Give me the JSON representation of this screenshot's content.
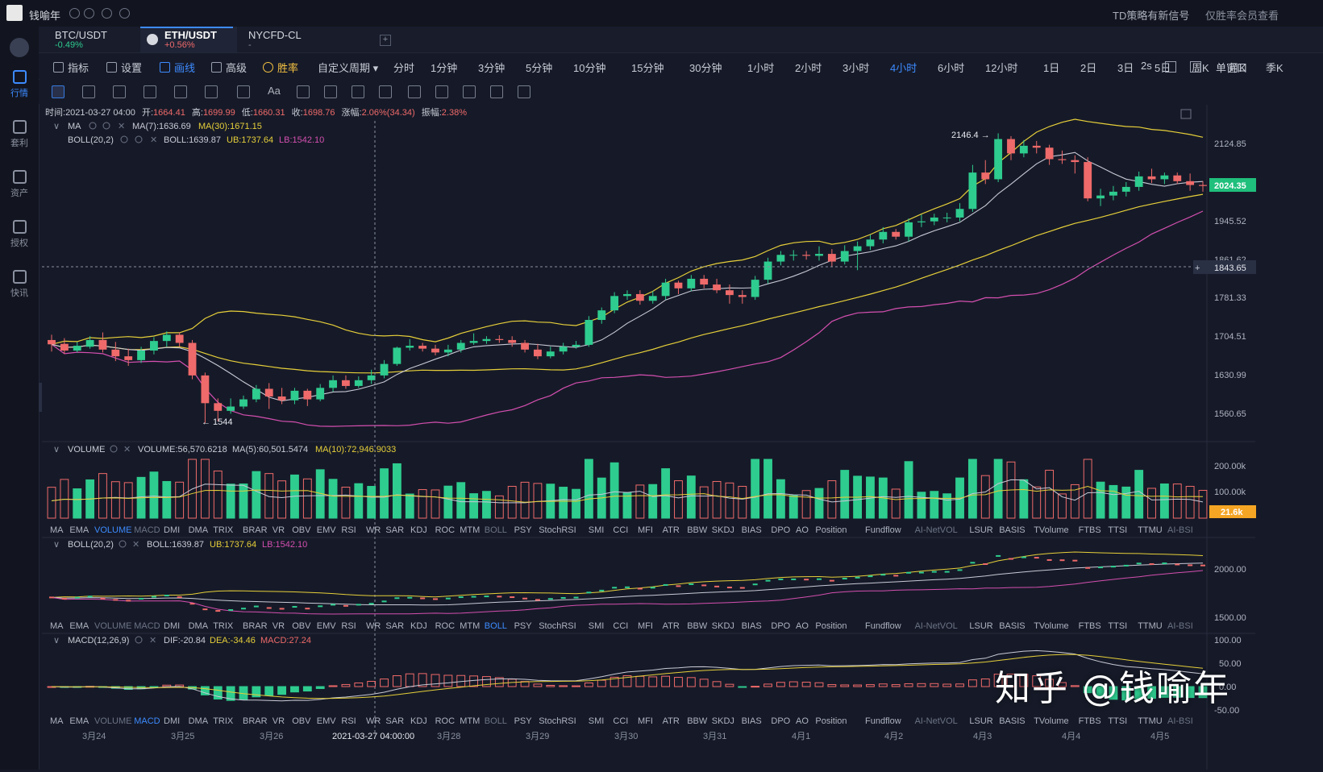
{
  "user": {
    "name": "钱喻年"
  },
  "top_notices": {
    "signal": "TD策略有新信号",
    "member": "仅胜率会员查看"
  },
  "sidebar": [
    {
      "label": "行情",
      "icon": "chart-icon",
      "active": true
    },
    {
      "label": "套利",
      "icon": "arbitrage-icon",
      "active": false
    },
    {
      "label": "资产",
      "icon": "wallet-icon",
      "active": false
    },
    {
      "label": "授权",
      "icon": "key-icon",
      "active": false
    },
    {
      "label": "快讯",
      "icon": "news-icon",
      "active": false
    }
  ],
  "tabs": [
    {
      "symbol": "BTC/USDT",
      "change": "-0.49%",
      "dir": "down"
    },
    {
      "symbol": "ETH/USDT",
      "change": "+0.56%",
      "dir": "up",
      "active": true
    },
    {
      "symbol": "NYCFD-CL",
      "change": "-",
      "dir": "flat"
    }
  ],
  "toolbar": {
    "indicator": "指标",
    "settings": "设置",
    "draw": "画线",
    "advanced": "高级",
    "winrate": "胜率",
    "custom": "自定义周期",
    "periods": [
      "分时",
      "1分钟",
      "3分钟",
      "5分钟",
      "10分钟",
      "15分钟",
      "30分钟",
      "1小时",
      "2小时",
      "3小时",
      "4小时",
      "6小时",
      "12小时",
      "1日",
      "2日",
      "3日",
      "5日",
      "周K",
      "月K",
      "季K"
    ],
    "active_period": "4小时",
    "refresh": "2s",
    "window": "单窗口"
  },
  "ohlc_line": {
    "time_label": "时间:",
    "time": "2021-03-27 04:00",
    "open_label": "开:",
    "open": "1664.41",
    "high_label": "高:",
    "high": "1699.99",
    "low_label": "低:",
    "low": "1660.31",
    "close_label": "收:",
    "close": "1698.76",
    "chg_label": "涨幅:",
    "chg": "2.06%(34.34)",
    "amp_label": "振幅:",
    "amp": "2.38%"
  },
  "main_legend": {
    "ma_name": "MA",
    "ma7": "MA(7):1636.69",
    "ma30": "MA(30):1671.15",
    "boll_name": "BOLL(20,2)",
    "boll": "BOLL:1639.87",
    "ub": "UB:1737.64",
    "lb": "LB:1542.10"
  },
  "price_axis": [
    "2124.85",
    "2024.35",
    "1945.52",
    "1861.62",
    "1843.65",
    "1781.33",
    "1704.51",
    "1630.99",
    "1560.65"
  ],
  "annotations": {
    "high": "2146.4 →",
    "low": "← 1544"
  },
  "volume_legend": {
    "name": "VOLUME",
    "vol": "VOLUME:56,570.6218",
    "ma5": "MA(5):60,501.5474",
    "ma10": "MA(10):72,946.9033"
  },
  "volume_axis": [
    "200.00k",
    "100.00k",
    "21.6k"
  ],
  "indicator_tabs": [
    "MA",
    "EMA",
    "VOLUME",
    "MACD",
    "DMI",
    "DMA",
    "TRIX",
    "BRAR",
    "VR",
    "OBV",
    "EMV",
    "RSI",
    "WR",
    "SAR",
    "KDJ",
    "ROC",
    "MTM",
    "BOLL",
    "PSY",
    "StochRSI",
    "SMI",
    "CCI",
    "MFI",
    "ATR",
    "BBW",
    "SKDJ",
    "BIAS",
    "DPO",
    "AO",
    "Position",
    "Fundflow",
    "AI-NetVOL",
    "LSUR",
    "BASIS",
    "TVolume",
    "FTBS",
    "TTSI",
    "TTMU",
    "AI-BSI"
  ],
  "boll_legend": {
    "name": "BOLL(20,2)",
    "boll": "BOLL:1639.87",
    "ub": "UB:1737.64",
    "lb": "LB:1542.10"
  },
  "boll_axis": [
    "2000.00",
    "1500.00"
  ],
  "macd_legend": {
    "name": "MACD(12,26,9)",
    "dif": "DIF:-20.84",
    "dea": "DEA:-34.46",
    "macd": "MACD:27.24"
  },
  "macd_axis": [
    "100.00",
    "50.00",
    "0.00",
    "-50.00"
  ],
  "date_axis": [
    "3月24",
    "3月25",
    "3月26",
    "2021-03-27 04:00:00",
    "3月28",
    "3月29",
    "3月30",
    "3月31",
    "4月1",
    "4月2",
    "4月3",
    "4月4",
    "4月5"
  ],
  "watermark": "知乎 @钱喻年",
  "colors": {
    "up": "#2ecc8f",
    "down": "#ef6a6a",
    "ma7": "#c9c9d6",
    "ma30": "#e6cf3a",
    "lb": "#d44fb0",
    "accent": "#3d8bff",
    "last": "#1fbf7c",
    "vol_last": "#f5a524"
  },
  "chart_data": {
    "type": "candlestick",
    "candles": [
      [
        1714,
        1705,
        1725,
        1690
      ],
      [
        1706,
        1692,
        1718,
        1685
      ],
      [
        1692,
        1702,
        1710,
        1688
      ],
      [
        1700,
        1714,
        1722,
        1696
      ],
      [
        1714,
        1694,
        1730,
        1688
      ],
      [
        1694,
        1680,
        1710,
        1670
      ],
      [
        1680,
        1672,
        1696,
        1660
      ],
      [
        1672,
        1692,
        1700,
        1666
      ],
      [
        1692,
        1712,
        1720,
        1684
      ],
      [
        1712,
        1725,
        1732,
        1700
      ],
      [
        1725,
        1708,
        1730,
        1700
      ],
      [
        1708,
        1640,
        1714,
        1632
      ],
      [
        1640,
        1582,
        1646,
        1540
      ],
      [
        1582,
        1566,
        1592,
        1544
      ],
      [
        1566,
        1575,
        1592,
        1560
      ],
      [
        1575,
        1590,
        1598,
        1570
      ],
      [
        1590,
        1612,
        1620,
        1584
      ],
      [
        1612,
        1596,
        1624,
        1570
      ],
      [
        1596,
        1588,
        1614,
        1580
      ],
      [
        1588,
        1608,
        1614,
        1580
      ],
      [
        1608,
        1590,
        1612,
        1576
      ],
      [
        1590,
        1614,
        1622,
        1586
      ],
      [
        1614,
        1630,
        1640,
        1606
      ],
      [
        1630,
        1618,
        1640,
        1612
      ],
      [
        1618,
        1630,
        1638,
        1614
      ],
      [
        1630,
        1640,
        1652,
        1622
      ],
      [
        1640,
        1664,
        1672,
        1634
      ],
      [
        1664,
        1698,
        1700,
        1660
      ],
      [
        1698,
        1702,
        1716,
        1692
      ],
      [
        1702,
        1696,
        1708,
        1690
      ],
      [
        1696,
        1688,
        1704,
        1682
      ],
      [
        1688,
        1694,
        1704,
        1680
      ],
      [
        1694,
        1708,
        1714,
        1688
      ],
      [
        1708,
        1712,
        1728,
        1704
      ],
      [
        1712,
        1716,
        1722,
        1706
      ],
      [
        1716,
        1714,
        1724,
        1708
      ],
      [
        1714,
        1708,
        1722,
        1700
      ],
      [
        1708,
        1694,
        1714,
        1688
      ],
      [
        1694,
        1680,
        1706,
        1674
      ],
      [
        1680,
        1690,
        1700,
        1676
      ],
      [
        1690,
        1700,
        1708,
        1684
      ],
      [
        1700,
        1704,
        1712,
        1696
      ],
      [
        1704,
        1756,
        1764,
        1700
      ],
      [
        1756,
        1776,
        1782,
        1748
      ],
      [
        1776,
        1806,
        1814,
        1770
      ],
      [
        1806,
        1810,
        1818,
        1798
      ],
      [
        1810,
        1796,
        1818,
        1788
      ],
      [
        1796,
        1806,
        1816,
        1790
      ],
      [
        1806,
        1834,
        1842,
        1798
      ],
      [
        1834,
        1822,
        1838,
        1810
      ],
      [
        1822,
        1842,
        1850,
        1816
      ],
      [
        1842,
        1830,
        1850,
        1822
      ],
      [
        1830,
        1818,
        1842,
        1812
      ],
      [
        1818,
        1808,
        1830,
        1790
      ],
      [
        1808,
        1804,
        1818,
        1790
      ],
      [
        1804,
        1840,
        1848,
        1798
      ],
      [
        1840,
        1878,
        1886,
        1832
      ],
      [
        1878,
        1892,
        1900,
        1870
      ],
      [
        1892,
        1892,
        1902,
        1880
      ],
      [
        1892,
        1890,
        1900,
        1882
      ],
      [
        1890,
        1894,
        1910,
        1880
      ],
      [
        1894,
        1878,
        1904,
        1868
      ],
      [
        1878,
        1900,
        1912,
        1872
      ],
      [
        1900,
        1910,
        1920,
        1860
      ],
      [
        1910,
        1924,
        1934,
        1902
      ],
      [
        1924,
        1940,
        1950,
        1916
      ],
      [
        1940,
        1930,
        1946,
        1924
      ],
      [
        1930,
        1960,
        1968,
        1920
      ],
      [
        1960,
        1962,
        1976,
        1950
      ],
      [
        1962,
        1970,
        1978,
        1954
      ],
      [
        1970,
        1970,
        1980,
        1960
      ],
      [
        1970,
        1988,
        2000,
        1962
      ],
      [
        1988,
        2064,
        2080,
        1982
      ],
      [
        2064,
        2050,
        2090,
        2040
      ],
      [
        2050,
        2134,
        2146,
        2044
      ],
      [
        2134,
        2104,
        2140,
        2090
      ],
      [
        2104,
        2120,
        2132,
        2096
      ],
      [
        2120,
        2116,
        2130,
        2104
      ],
      [
        2116,
        2092,
        2122,
        2080
      ],
      [
        2092,
        2090,
        2110,
        2082
      ],
      [
        2090,
        2086,
        2100,
        2062
      ],
      [
        2086,
        2010,
        2096,
        2004
      ],
      [
        2010,
        2016,
        2030,
        1994
      ],
      [
        2016,
        2024,
        2036,
        2006
      ],
      [
        2024,
        2034,
        2044,
        2014
      ],
      [
        2034,
        2056,
        2066,
        2026
      ],
      [
        2056,
        2050,
        2072,
        2042
      ],
      [
        2050,
        2058,
        2064,
        2040
      ],
      [
        2058,
        2046,
        2064,
        2040
      ],
      [
        2046,
        2038,
        2062,
        2026
      ],
      [
        2038,
        2036,
        2046,
        2024
      ]
    ]
  }
}
